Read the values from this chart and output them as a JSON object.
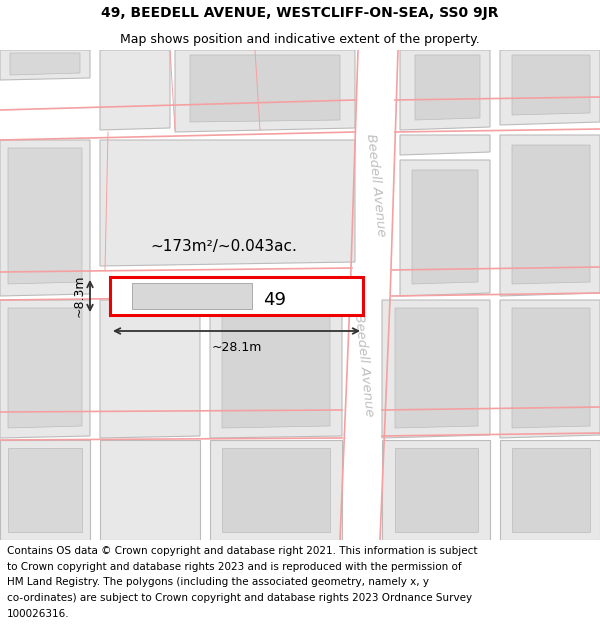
{
  "title_line1": "49, BEEDELL AVENUE, WESTCLIFF-ON-SEA, SS0 9JR",
  "title_line2": "Map shows position and indicative extent of the property.",
  "footer_lines": [
    "Contains OS data © Crown copyright and database right 2021. This information is subject",
    "to Crown copyright and database rights 2023 and is reproduced with the permission of",
    "HM Land Registry. The polygons (including the associated geometry, namely x, y",
    "co-ordinates) are subject to Crown copyright and database rights 2023 Ordnance Survey",
    "100026316."
  ],
  "bg_color": "#ffffff",
  "map_bg": "#f7f7f7",
  "building_fill": "#e8e8e8",
  "building_edge": "#bbbbbb",
  "road_line_color": "#f5a0a0",
  "highlight_fill": "#ffffff",
  "highlight_edge": "#ee0000",
  "street_label": "Beedell Avenue",
  "property_label": "49",
  "area_label": "~173m²/~0.043ac.",
  "dim_width": "~28.1m",
  "dim_height": "~8.3m",
  "title_fontsize": 10,
  "subtitle_fontsize": 9,
  "footer_fontsize": 7.5
}
